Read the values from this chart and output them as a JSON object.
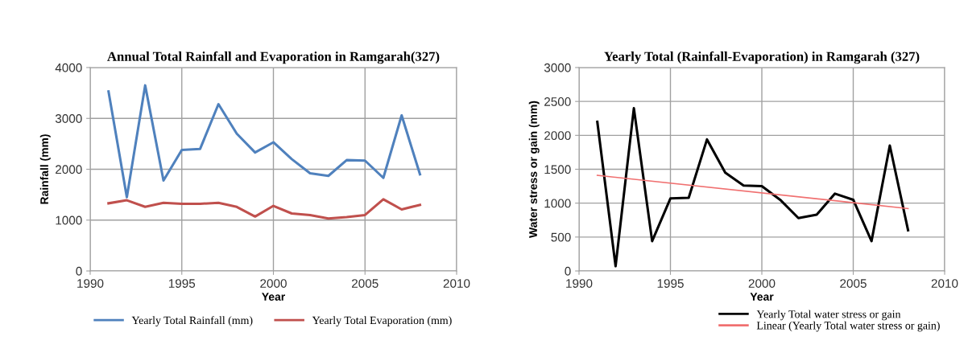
{
  "chart_data": [
    {
      "type": "line",
      "title": "Annual Total Rainfall and Evaporation in Ramgarah(327)",
      "xlabel": "Year",
      "ylabel": "Rainfall (mm)",
      "xlim": [
        1990,
        2010
      ],
      "xticks": [
        1990,
        1995,
        2000,
        2005,
        2010
      ],
      "ylim": [
        0,
        4000
      ],
      "yticks": [
        0,
        1000,
        2000,
        3000,
        4000
      ],
      "grid": true,
      "legend": "bottom",
      "x": [
        1991,
        1992,
        1993,
        1994,
        1995,
        1996,
        1997,
        1998,
        1999,
        2000,
        2001,
        2002,
        2003,
        2004,
        2005,
        2006,
        2007,
        2008
      ],
      "series": [
        {
          "name": "Yearly Total Rainfall (mm)",
          "color": "#4f81bd",
          "values": [
            3530,
            1450,
            3650,
            1780,
            2380,
            2400,
            3280,
            2700,
            2330,
            2530,
            2200,
            1920,
            1870,
            2180,
            2170,
            1830,
            3060,
            1900
          ]
        },
        {
          "name": "Yearly Total Evaporation (mm)",
          "color": "#c0504d",
          "values": [
            1330,
            1390,
            1260,
            1340,
            1320,
            1320,
            1340,
            1260,
            1070,
            1280,
            1130,
            1100,
            1030,
            1060,
            1100,
            1410,
            1210,
            1300
          ]
        }
      ]
    },
    {
      "type": "line",
      "title": "Yearly Total (Rainfall-Evaporation) in Ramgarah (327)",
      "xlabel": "Year",
      "ylabel": "Water stress or gain (mm)",
      "xlim": [
        1990,
        2010
      ],
      "xticks": [
        1990,
        1995,
        2000,
        2005,
        2010
      ],
      "ylim": [
        0,
        3000
      ],
      "yticks": [
        0,
        500,
        1000,
        1500,
        2000,
        2500,
        3000
      ],
      "grid": true,
      "legend": "bottom right",
      "x": [
        1991,
        1992,
        1993,
        1994,
        1995,
        1996,
        1997,
        1998,
        1999,
        2000,
        2001,
        2002,
        2003,
        2004,
        2005,
        2006,
        2007,
        2008
      ],
      "series": [
        {
          "name": "Yearly Total water stress or gain",
          "color": "#000000",
          "values": [
            2200,
            70,
            2400,
            440,
            1070,
            1080,
            1940,
            1450,
            1260,
            1250,
            1050,
            780,
            830,
            1140,
            1050,
            440,
            1850,
            600
          ]
        },
        {
          "name": "Linear (Yearly Total water stress or gain)",
          "color": "#f07070",
          "x": [
            1991,
            2008
          ],
          "values": [
            1410,
            920
          ]
        }
      ]
    }
  ]
}
